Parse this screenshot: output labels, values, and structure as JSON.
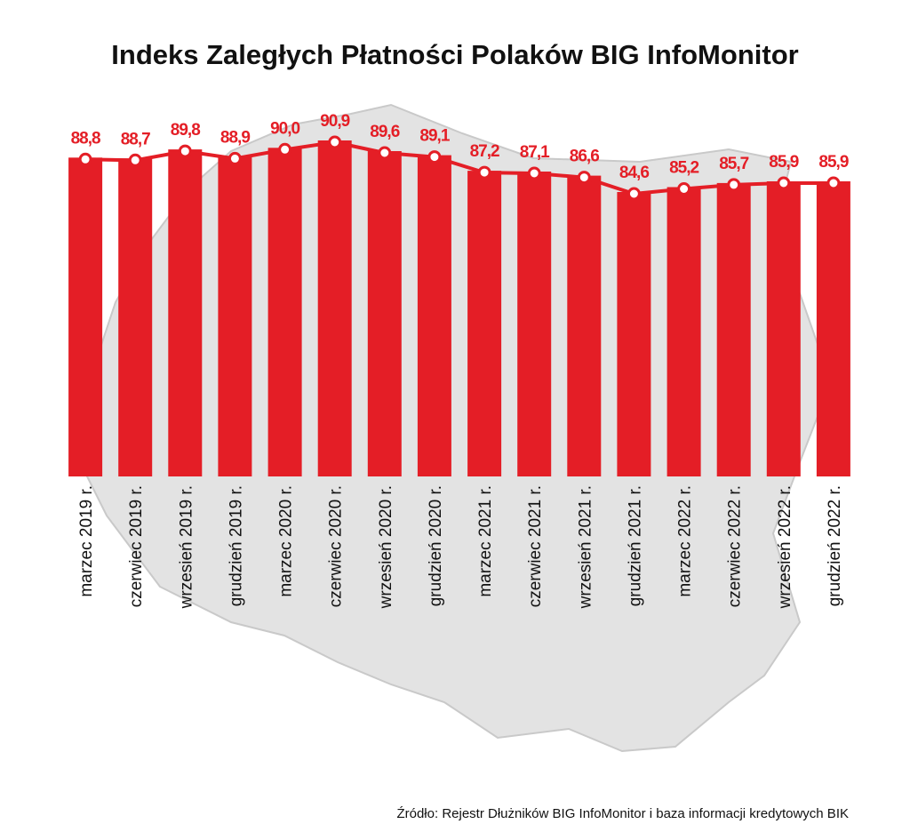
{
  "chart_data": {
    "type": "bar",
    "title": "Indeks Zaległych Płatności Polaków BIG InfoMonitor",
    "categories": [
      "marzec 2019 r.",
      "czerwiec 2019 r.",
      "wrzesień 2019 r.",
      "grudzień 2019 r.",
      "marzec 2020 r.",
      "czerwiec 2020 r.",
      "wrzesień 2020 r.",
      "grudzień 2020 r.",
      "marzec 2021 r.",
      "czerwiec 2021 r.",
      "wrzesień 2021 r.",
      "grudzień 2021 r.",
      "marzec 2022 r.",
      "czerwiec 2022 r.",
      "wrzesień 2022 r.",
      "grudzień 2022 r."
    ],
    "values": [
      88.8,
      88.7,
      89.8,
      88.9,
      90.0,
      90.9,
      89.6,
      89.1,
      87.2,
      87.1,
      86.6,
      84.6,
      85.2,
      85.7,
      85.9,
      85.9
    ],
    "value_labels": [
      "88,8",
      "88,7",
      "89,8",
      "88,9",
      "90,0",
      "90,9",
      "89,6",
      "89,1",
      "87,2",
      "87,1",
      "86,6",
      "84,6",
      "85,2",
      "85,7",
      "85,9",
      "85,9"
    ],
    "overlay": "line",
    "xlabel": "",
    "ylabel": "",
    "grid": false,
    "legend": "none",
    "source": "Źródło: Rejestr Dłużników BIG InfoMonitor i baza informacji kredytowych BIK"
  },
  "colors": {
    "bar": "#e41e26",
    "line": "#e41e26",
    "marker_fill": "#ffffff",
    "label": "#e41e26",
    "map": "#e3e3e3",
    "map_edge": "#c9c9c9",
    "background": "#ffffff"
  }
}
